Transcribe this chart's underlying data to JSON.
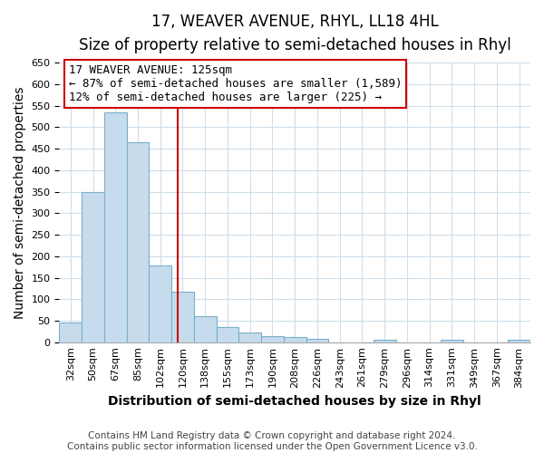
{
  "title": "17, WEAVER AVENUE, RHYL, LL18 4HL",
  "subtitle": "Size of property relative to semi-detached houses in Rhyl",
  "xlabel": "Distribution of semi-detached houses by size in Rhyl",
  "ylabel": "Number of semi-detached properties",
  "footer_lines": [
    "Contains HM Land Registry data © Crown copyright and database right 2024.",
    "Contains public sector information licensed under the Open Government Licence v3.0."
  ],
  "bin_labels": [
    "32sqm",
    "50sqm",
    "67sqm",
    "85sqm",
    "102sqm",
    "120sqm",
    "138sqm",
    "155sqm",
    "173sqm",
    "190sqm",
    "208sqm",
    "226sqm",
    "243sqm",
    "261sqm",
    "279sqm",
    "296sqm",
    "314sqm",
    "331sqm",
    "349sqm",
    "367sqm",
    "384sqm"
  ],
  "bar_values": [
    46,
    349,
    535,
    465,
    178,
    118,
    60,
    35,
    22,
    14,
    11,
    8,
    0,
    0,
    5,
    0,
    0,
    5,
    0,
    0,
    5
  ],
  "bar_color": "#c6dcec",
  "bar_edge_color": "#7aaecb",
  "ylim": [
    0,
    650
  ],
  "yticks": [
    0,
    50,
    100,
    150,
    200,
    250,
    300,
    350,
    400,
    450,
    500,
    550,
    600,
    650
  ],
  "bin_edges": [
    32,
    50,
    67,
    85,
    102,
    120,
    138,
    155,
    173,
    190,
    208,
    226,
    243,
    261,
    279,
    296,
    314,
    331,
    349,
    367,
    384
  ],
  "property_size": 125,
  "property_label": "17 WEAVER AVENUE: 125sqm",
  "annotation_line1": "← 87% of semi-detached houses are smaller (1,589)",
  "annotation_line2": "12% of semi-detached houses are larger (225) →",
  "vline_color": "#cc0000",
  "annotation_box_color": "#ffffff",
  "annotation_box_edge": "#cc0000",
  "title_fontsize": 12,
  "subtitle_fontsize": 10,
  "axis_label_fontsize": 10,
  "tick_fontsize": 8,
  "annotation_fontsize": 9,
  "footer_fontsize": 7.5,
  "xlabel_fontweight": "bold"
}
